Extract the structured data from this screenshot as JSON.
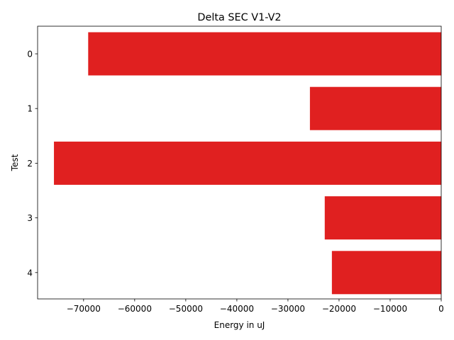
{
  "chart_data": {
    "type": "bar",
    "orientation": "horizontal",
    "title": "Delta SEC V1-V2",
    "xlabel": "Energy in uJ",
    "ylabel": "Test",
    "categories": [
      "0",
      "1",
      "2",
      "3",
      "4"
    ],
    "values": [
      -69100,
      -25700,
      -75800,
      -22800,
      -21400
    ],
    "xlim": [
      -79000,
      0
    ],
    "xticks": [
      -70000,
      -60000,
      -50000,
      -40000,
      -30000,
      -20000,
      -10000,
      0
    ],
    "xtick_labels": [
      "−70000",
      "−60000",
      "−50000",
      "−40000",
      "−30000",
      "−20000",
      "−10000",
      "0"
    ],
    "bar_color": "#e02020",
    "grid": false,
    "legend": "none"
  }
}
